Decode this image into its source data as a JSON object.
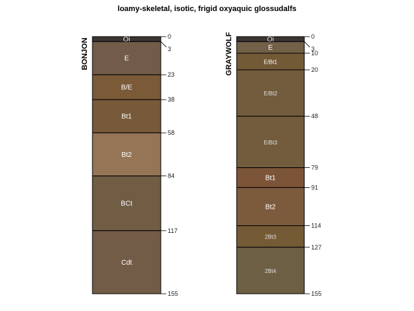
{
  "chart_data": {
    "type": "soil_profile_sketch",
    "title": "loamy-skeletal, isotic, frigid oxyaquic glossudalfs",
    "depth_range": [
      0,
      155
    ],
    "profiles": [
      {
        "id": "BONJON",
        "horizons": [
          {
            "name": "Oi",
            "top": 0,
            "bottom": 3,
            "color": "#3a3634",
            "label_color": "#e8e8e8"
          },
          {
            "name": "E",
            "top": 3,
            "bottom": 23,
            "color": "#725c49",
            "label_color": "#ffffff"
          },
          {
            "name": "B/E",
            "top": 23,
            "bottom": 38,
            "color": "#7b5a38",
            "label_color": "#ffffff"
          },
          {
            "name": "Bt1",
            "top": 38,
            "bottom": 58,
            "color": "#775a39",
            "label_color": "#ffffff"
          },
          {
            "name": "Bt2",
            "top": 58,
            "bottom": 84,
            "color": "#957556",
            "label_color": "#ffffff"
          },
          {
            "name": "BCt",
            "top": 84,
            "bottom": 117,
            "color": "#705d44",
            "label_color": "#ffffff"
          },
          {
            "name": "Cdt",
            "top": 117,
            "bottom": 155,
            "color": "#735c47",
            "label_color": "#ffffff"
          }
        ],
        "depth_labels": [
          "0",
          "3",
          "23",
          "38",
          "58",
          "84",
          "117",
          "155"
        ]
      },
      {
        "id": "GRAYWOLF",
        "horizons": [
          {
            "name": "Oi",
            "top": 0,
            "bottom": 3,
            "color": "#3a3634",
            "label_color": "#e8e8e8"
          },
          {
            "name": "E",
            "top": 3,
            "bottom": 10,
            "color": "#726049",
            "label_color": "#ffffff"
          },
          {
            "name": "E/Bt1",
            "top": 10,
            "bottom": 20,
            "color": "#735a37",
            "label_color": "#ffffff"
          },
          {
            "name": "E/Bt2",
            "top": 20,
            "bottom": 48,
            "color": "#725c3d",
            "label_color": "#e0e0e0"
          },
          {
            "name": "E/Bt3",
            "top": 48,
            "bottom": 79,
            "color": "#725c3d",
            "label_color": "#e0e0e0"
          },
          {
            "name": "Bt1",
            "top": 79,
            "bottom": 91,
            "color": "#7c5438",
            "label_color": "#ffffff"
          },
          {
            "name": "Bt2",
            "top": 91,
            "bottom": 114,
            "color": "#7c5a3c",
            "label_color": "#ffffff"
          },
          {
            "name": "2Bt3",
            "top": 114,
            "bottom": 127,
            "color": "#745a35",
            "label_color": "#e0e0e0"
          },
          {
            "name": "2Bt4",
            "top": 127,
            "bottom": 155,
            "color": "#6c5f44",
            "label_color": "#e0e0e0"
          }
        ],
        "depth_labels": [
          "0",
          "3",
          "10",
          "20",
          "48",
          "79",
          "91",
          "114",
          "127",
          "155"
        ]
      }
    ]
  }
}
